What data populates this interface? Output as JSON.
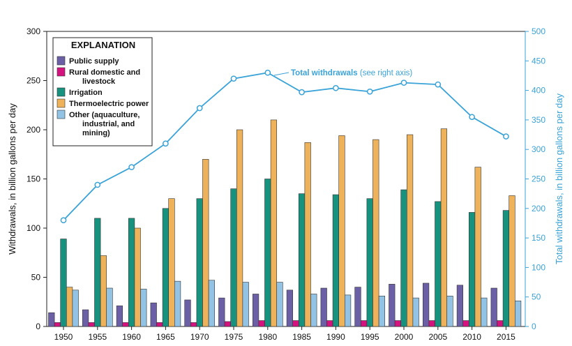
{
  "chart_data": {
    "type": "bar",
    "categories": [
      "1950",
      "1955",
      "1960",
      "1965",
      "1970",
      "1975",
      "1980",
      "1985",
      "1990",
      "1995",
      "2000",
      "2005",
      "2010",
      "2015"
    ],
    "series": [
      {
        "name": "Public supply",
        "color": "#6b5fa6",
        "values": [
          14,
          17,
          21,
          24,
          27,
          29,
          33,
          37,
          39,
          40,
          43,
          44,
          42,
          39
        ]
      },
      {
        "name": "Rural domestic and livestock",
        "color": "#d4137e",
        "values": [
          4,
          4,
          4,
          4,
          4,
          5,
          6,
          6,
          6,
          6,
          6,
          6,
          6,
          6
        ]
      },
      {
        "name": "Irrigation",
        "color": "#16927e",
        "values": [
          89,
          110,
          110,
          120,
          130,
          140,
          150,
          135,
          134,
          130,
          139,
          127,
          116,
          118
        ]
      },
      {
        "name": "Thermoelectric power",
        "color": "#eeb35a",
        "values": [
          40,
          72,
          100,
          130,
          170,
          200,
          210,
          187,
          194,
          190,
          195,
          201,
          162,
          133
        ]
      },
      {
        "name": "Other (aquaculture, industrial, and mining)",
        "color": "#92c3e4",
        "values": [
          37,
          39,
          38,
          46,
          47,
          45,
          45,
          33,
          32,
          31,
          29,
          31,
          29,
          26
        ]
      }
    ],
    "total_withdrawals": {
      "color": "#3aa3d8",
      "values": [
        180,
        240,
        270,
        310,
        370,
        420,
        430,
        397,
        404,
        398,
        413,
        410,
        355,
        322
      ]
    },
    "ylabel": "Withdrawals, in billion gallons per day",
    "y2label": "Total withdrawals, in billion gallons per day",
    "ylim": [
      0,
      300
    ],
    "y2lim": [
      0,
      500
    ],
    "yticks": [
      "0",
      "50",
      "100",
      "150",
      "200",
      "250",
      "300"
    ],
    "y2ticks": [
      "0",
      "50",
      "100",
      "150",
      "200",
      "250",
      "300",
      "350",
      "400",
      "450",
      "500"
    ],
    "grid": false,
    "legend": {
      "title": "EXPLANATION",
      "placement": "top-left",
      "entries": [
        {
          "lines": [
            "Public supply"
          ],
          "series": 0
        },
        {
          "lines": [
            "Rural domestic and",
            "livestock"
          ],
          "series": 1
        },
        {
          "lines": [
            "Irrigation"
          ],
          "series": 2
        },
        {
          "lines": [
            "Thermoelectric power"
          ],
          "series": 3
        },
        {
          "lines": [
            "Other (aquaculture,",
            "industrial, and",
            "mining)"
          ],
          "series": 4
        }
      ]
    },
    "annotation": {
      "bold": "Total withdrawals",
      "normal": " (see right axis)"
    }
  }
}
